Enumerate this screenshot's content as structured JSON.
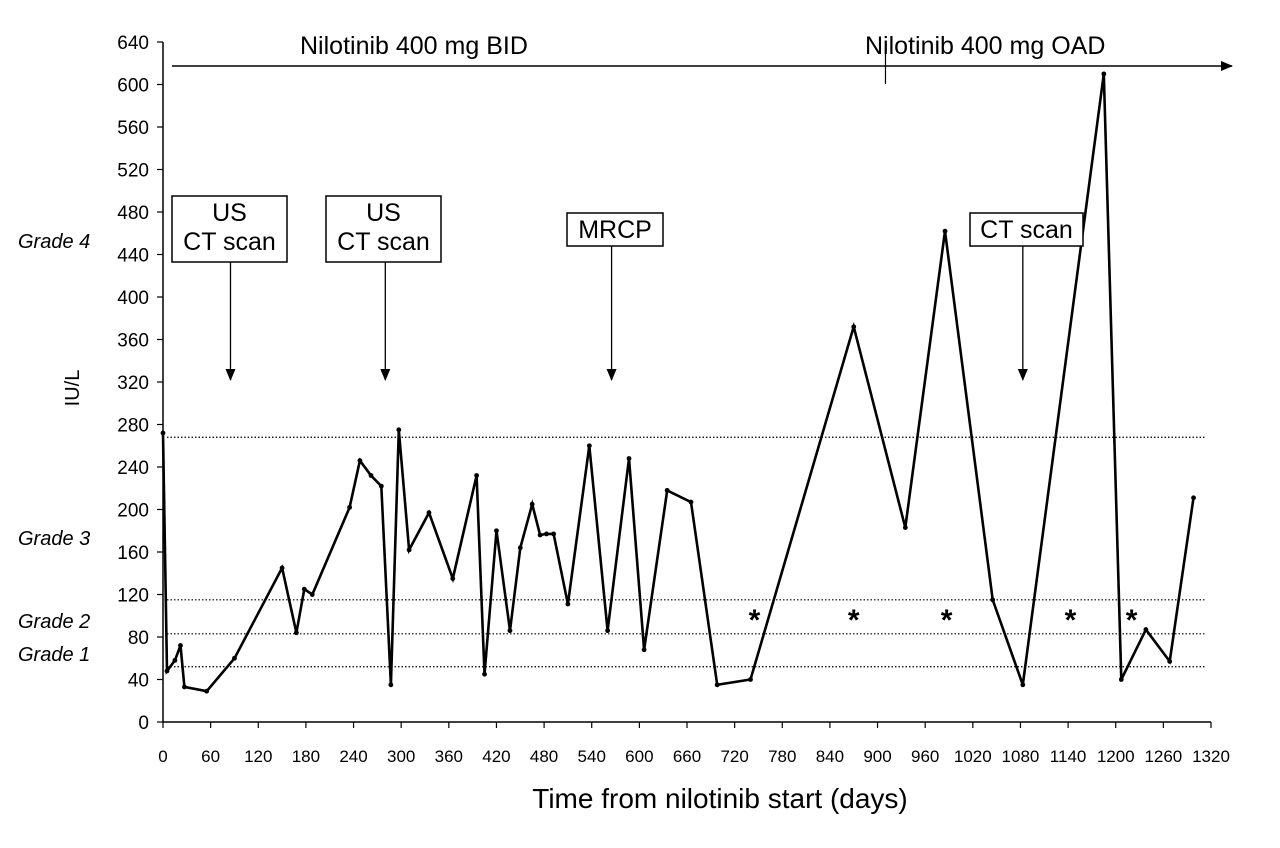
{
  "chart_data": {
    "type": "line",
    "xlabel": "Time from nilotinib start (days)",
    "ylabel": "IU/L",
    "xlim": [
      0,
      1320
    ],
    "ylim": [
      0,
      640
    ],
    "xticks": [
      0,
      60,
      120,
      180,
      240,
      300,
      360,
      420,
      480,
      540,
      600,
      660,
      720,
      780,
      840,
      900,
      960,
      1020,
      1080,
      1140,
      1200,
      1260,
      1320
    ],
    "yticks": [
      0,
      40,
      80,
      120,
      160,
      200,
      240,
      280,
      320,
      360,
      400,
      440,
      480,
      520,
      560,
      600,
      640
    ],
    "series": [
      {
        "name": "IU/L",
        "x": [
          0,
          5,
          15,
          22,
          27,
          55,
          90,
          150,
          168,
          178,
          188,
          235,
          248,
          262,
          275,
          287,
          297,
          310,
          335,
          365,
          395,
          405,
          420,
          437,
          450,
          465,
          475,
          483,
          492,
          510,
          537,
          560,
          587,
          606,
          635,
          665,
          698,
          740,
          870,
          935,
          985,
          1045,
          1083,
          1185,
          1207,
          1238,
          1268,
          1298
        ],
        "y": [
          272,
          48,
          58,
          72,
          33,
          29,
          60,
          145,
          84,
          125,
          120,
          202,
          246,
          232,
          222,
          35,
          275,
          162,
          197,
          135,
          232,
          45,
          180,
          86,
          164,
          205,
          176,
          177,
          177,
          111,
          260,
          86,
          248,
          68,
          218,
          207,
          35,
          40,
          372,
          183,
          462,
          115,
          35,
          610,
          40,
          87,
          57,
          211
        ]
      }
    ],
    "grade_lines": [
      {
        "name": "Grade 1",
        "value": 52
      },
      {
        "name": "Grade 2",
        "value": 83
      },
      {
        "name": "Grade 3",
        "value": 115
      },
      {
        "name": "Grade 4",
        "value": 268
      }
    ],
    "grade_labels": [
      "Grade 4",
      "Grade 3",
      "Grade 2",
      "Grade 1"
    ],
    "regimens": {
      "first": "Nilotinib 400 mg BID",
      "second": "Nilotinib 400 mg OAD",
      "switch_day": 910
    },
    "annotations": [
      {
        "lines": [
          "US",
          "CT scan"
        ],
        "day": 85
      },
      {
        "lines": [
          "US",
          "CT scan"
        ],
        "day": 280
      },
      {
        "lines": [
          "MRCP"
        ],
        "day": 565
      },
      {
        "lines": [
          "CT scan"
        ],
        "day": 1083
      }
    ],
    "star_days": [
      745,
      870,
      987,
      1143,
      1220
    ],
    "star_symbol": "*"
  }
}
